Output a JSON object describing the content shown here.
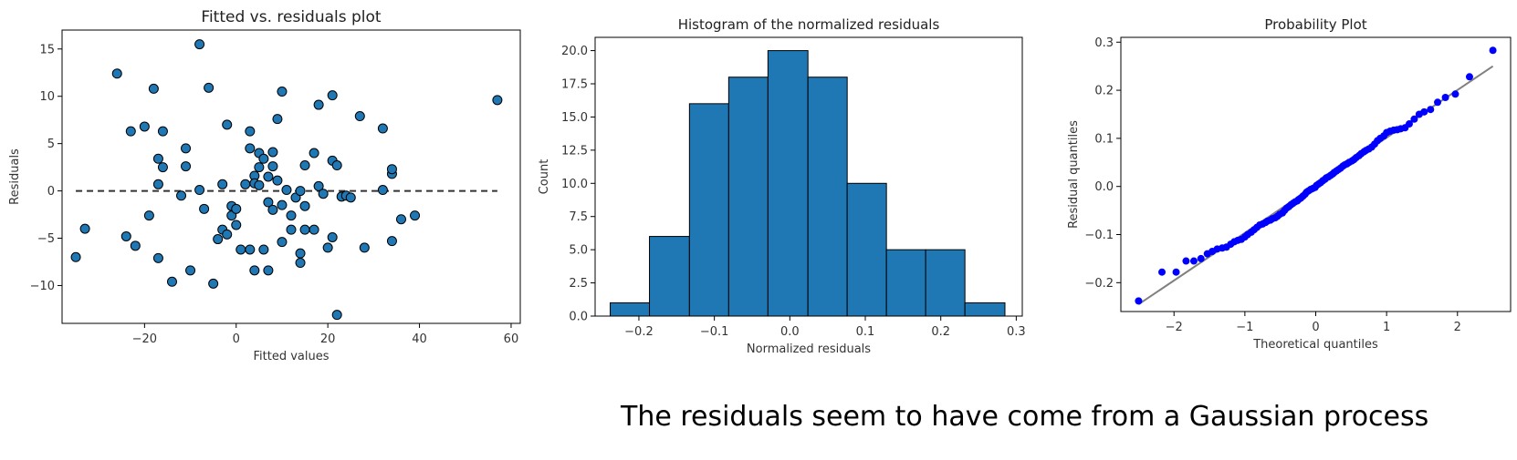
{
  "chart_data": [
    {
      "type": "scatter",
      "title": "Fitted vs. residuals plot",
      "xlabel": "Fitted values",
      "ylabel": "Residuals",
      "xlim": [
        -38,
        62
      ],
      "ylim": [
        -14,
        17
      ],
      "xticks": [
        -20,
        0,
        20,
        40,
        60
      ],
      "yticks": [
        -10,
        -5,
        0,
        5,
        10,
        15
      ],
      "marker_color": "#1f77b4",
      "reference_line": {
        "y": 0,
        "style": "dashed",
        "color": "#333333"
      },
      "points": [
        [
          -35,
          -7
        ],
        [
          -33,
          -4
        ],
        [
          -26,
          12.4
        ],
        [
          -24,
          -4.8
        ],
        [
          -23,
          6.3
        ],
        [
          -22,
          -5.8
        ],
        [
          -20,
          6.8
        ],
        [
          -19,
          -2.6
        ],
        [
          -18,
          10.8
        ],
        [
          -17,
          3.4
        ],
        [
          -17,
          0.7
        ],
        [
          -17,
          -7.1
        ],
        [
          -16,
          2.5
        ],
        [
          -16,
          6.3
        ],
        [
          -14,
          -9.6
        ],
        [
          -12,
          -0.5
        ],
        [
          -11,
          4.5
        ],
        [
          -11,
          2.6
        ],
        [
          -10,
          -8.4
        ],
        [
          -8,
          15.5
        ],
        [
          -8,
          0.1
        ],
        [
          -7,
          -1.9
        ],
        [
          -6,
          10.9
        ],
        [
          -5,
          -9.8
        ],
        [
          -4,
          -5.1
        ],
        [
          -3,
          -4.1
        ],
        [
          -3,
          0.7
        ],
        [
          -2,
          -4.6
        ],
        [
          -2,
          7.0
        ],
        [
          -1,
          -1.6
        ],
        [
          -1,
          -2.6
        ],
        [
          0,
          -3.6
        ],
        [
          0,
          -1.9
        ],
        [
          1,
          -6.2
        ],
        [
          2,
          0.7
        ],
        [
          3,
          -6.2
        ],
        [
          3,
          4.5
        ],
        [
          3,
          6.3
        ],
        [
          4,
          -8.4
        ],
        [
          4,
          1.6
        ],
        [
          4,
          0.8
        ],
        [
          5,
          0.6
        ],
        [
          5,
          2.5
        ],
        [
          5,
          4.0
        ],
        [
          6,
          3.4
        ],
        [
          6,
          -6.2
        ],
        [
          7,
          -8.4
        ],
        [
          7,
          -1.2
        ],
        [
          7,
          1.5
        ],
        [
          8,
          4.1
        ],
        [
          8,
          2.6
        ],
        [
          8,
          -2.0
        ],
        [
          9,
          1.1
        ],
        [
          9,
          7.6
        ],
        [
          10,
          -5.4
        ],
        [
          10,
          -1.5
        ],
        [
          10,
          10.5
        ],
        [
          11,
          0.1
        ],
        [
          12,
          -2.6
        ],
        [
          12,
          -4.1
        ],
        [
          13,
          -0.7
        ],
        [
          14,
          -7.6
        ],
        [
          14,
          -6.6
        ],
        [
          14,
          0.0
        ],
        [
          15,
          -4.1
        ],
        [
          15,
          -1.6
        ],
        [
          15,
          2.7
        ],
        [
          17,
          -4.1
        ],
        [
          17,
          4.0
        ],
        [
          18,
          0.5
        ],
        [
          18,
          9.1
        ],
        [
          19,
          -0.3
        ],
        [
          20,
          -6.0
        ],
        [
          21,
          3.2
        ],
        [
          21,
          10.1
        ],
        [
          21,
          -4.9
        ],
        [
          22,
          -13.1
        ],
        [
          22,
          2.7
        ],
        [
          23,
          -0.6
        ],
        [
          24,
          -0.5
        ],
        [
          25,
          -0.7
        ],
        [
          27,
          7.9
        ],
        [
          28,
          -6.0
        ],
        [
          32,
          0.1
        ],
        [
          32,
          6.6
        ],
        [
          34,
          -5.3
        ],
        [
          34,
          1.8
        ],
        [
          34,
          2.3
        ],
        [
          36,
          -3.0
        ],
        [
          39,
          -2.6
        ],
        [
          57,
          9.6
        ]
      ]
    },
    {
      "type": "bar",
      "subtype": "histogram",
      "title": "Histogram of the normalized residuals",
      "xlabel": "Normalized residuals",
      "ylabel": "Count",
      "xlim": [
        -0.258,
        0.308
      ],
      "ylim": [
        0,
        21
      ],
      "xticks": [
        -0.2,
        -0.1,
        0.0,
        0.1,
        0.2,
        0.3
      ],
      "xtick_labels": [
        "−0.2",
        "−0.1",
        "0.0",
        "0.1",
        "0.2",
        "0.3"
      ],
      "yticks": [
        0.0,
        2.5,
        5.0,
        7.5,
        10.0,
        12.5,
        15.0,
        17.5,
        20.0
      ],
      "ytick_labels": [
        "0.0",
        "2.5",
        "5.0",
        "7.5",
        "10.0",
        "12.5",
        "15.0",
        "17.5",
        "20.0"
      ],
      "bar_color": "#1f77b4",
      "bin_edges": [
        -0.238,
        -0.186,
        -0.133,
        -0.081,
        -0.029,
        0.024,
        0.076,
        0.128,
        0.18,
        0.232,
        0.285
      ],
      "counts": [
        1,
        6,
        16,
        18,
        20,
        18,
        10,
        5,
        5,
        1
      ]
    },
    {
      "type": "scatter",
      "subtype": "probability-plot",
      "title": "Probability Plot",
      "xlabel": "Theoretical quantiles",
      "ylabel": "Residual quantiles",
      "xlim": [
        -2.75,
        2.75
      ],
      "ylim": [
        -0.26,
        0.31
      ],
      "xticks": [
        -2,
        -1,
        0,
        1,
        2
      ],
      "xtick_labels": [
        "−2",
        "−1",
        "0",
        "1",
        "2"
      ],
      "yticks": [
        -0.2,
        -0.1,
        0.0,
        0.1,
        0.2,
        0.3
      ],
      "ytick_labels": [
        "−0.2",
        "−0.1",
        "0.0",
        "0.1",
        "0.2",
        "0.3"
      ],
      "marker_color": "#0000ff",
      "fit_line": {
        "x": [
          -2.5,
          2.5
        ],
        "y": [
          -0.245,
          0.25
        ],
        "color": "#808080"
      },
      "n_points": 100,
      "points": [
        [
          -2.5,
          -0.238
        ],
        [
          -2.17,
          -0.178
        ],
        [
          -1.97,
          -0.178
        ],
        [
          -1.83,
          -0.155
        ],
        [
          -1.72,
          -0.155
        ],
        [
          -1.62,
          -0.15
        ],
        [
          -1.53,
          -0.14
        ],
        [
          -1.46,
          -0.135
        ],
        [
          -1.39,
          -0.13
        ],
        [
          -1.32,
          -0.128
        ],
        [
          -1.26,
          -0.126
        ],
        [
          -1.2,
          -0.12
        ],
        [
          -1.15,
          -0.115
        ],
        [
          -1.1,
          -0.112
        ],
        [
          -1.05,
          -0.11
        ],
        [
          -1.0,
          -0.105
        ],
        [
          -0.96,
          -0.1
        ],
        [
          -0.91,
          -0.095
        ],
        [
          -0.87,
          -0.09
        ],
        [
          -0.83,
          -0.085
        ],
        [
          -0.79,
          -0.08
        ],
        [
          -0.75,
          -0.078
        ],
        [
          -0.71,
          -0.075
        ],
        [
          -0.68,
          -0.072
        ],
        [
          -0.64,
          -0.07
        ],
        [
          -0.61,
          -0.067
        ],
        [
          -0.57,
          -0.065
        ],
        [
          -0.54,
          -0.062
        ],
        [
          -0.51,
          -0.058
        ],
        [
          -0.47,
          -0.055
        ],
        [
          -0.44,
          -0.05
        ],
        [
          -0.41,
          -0.045
        ],
        [
          -0.38,
          -0.042
        ],
        [
          -0.35,
          -0.038
        ],
        [
          -0.32,
          -0.035
        ],
        [
          -0.29,
          -0.032
        ],
        [
          -0.26,
          -0.03
        ],
        [
          -0.24,
          -0.027
        ],
        [
          -0.21,
          -0.024
        ],
        [
          -0.18,
          -0.02
        ],
        [
          -0.15,
          -0.016
        ],
        [
          -0.13,
          -0.012
        ],
        [
          -0.1,
          -0.009
        ],
        [
          -0.07,
          -0.006
        ],
        [
          -0.04,
          -0.004
        ],
        [
          -0.01,
          -0.002
        ],
        [
          0.01,
          0.002
        ],
        [
          0.04,
          0.005
        ],
        [
          0.07,
          0.008
        ],
        [
          0.1,
          0.012
        ],
        [
          0.13,
          0.015
        ],
        [
          0.15,
          0.018
        ],
        [
          0.18,
          0.02
        ],
        [
          0.21,
          0.023
        ],
        [
          0.24,
          0.026
        ],
        [
          0.26,
          0.029
        ],
        [
          0.29,
          0.032
        ],
        [
          0.32,
          0.035
        ],
        [
          0.35,
          0.038
        ],
        [
          0.38,
          0.042
        ],
        [
          0.41,
          0.045
        ],
        [
          0.44,
          0.047
        ],
        [
          0.47,
          0.05
        ],
        [
          0.51,
          0.053
        ],
        [
          0.54,
          0.056
        ],
        [
          0.57,
          0.06
        ],
        [
          0.61,
          0.064
        ],
        [
          0.64,
          0.068
        ],
        [
          0.68,
          0.072
        ],
        [
          0.71,
          0.075
        ],
        [
          0.75,
          0.078
        ],
        [
          0.79,
          0.082
        ],
        [
          0.83,
          0.088
        ],
        [
          0.87,
          0.095
        ],
        [
          0.91,
          0.1
        ],
        [
          0.96,
          0.105
        ],
        [
          1.0,
          0.112
        ],
        [
          1.05,
          0.115
        ],
        [
          1.1,
          0.117
        ],
        [
          1.15,
          0.118
        ],
        [
          1.2,
          0.12
        ],
        [
          1.26,
          0.122
        ],
        [
          1.32,
          0.13
        ],
        [
          1.39,
          0.14
        ],
        [
          1.46,
          0.15
        ],
        [
          1.53,
          0.155
        ],
        [
          1.62,
          0.16
        ],
        [
          1.72,
          0.175
        ],
        [
          1.83,
          0.185
        ],
        [
          1.97,
          0.192
        ],
        [
          2.17,
          0.228
        ],
        [
          2.5,
          0.283
        ]
      ]
    }
  ],
  "caption": "The residuals seem to have come from a Gaussian process"
}
